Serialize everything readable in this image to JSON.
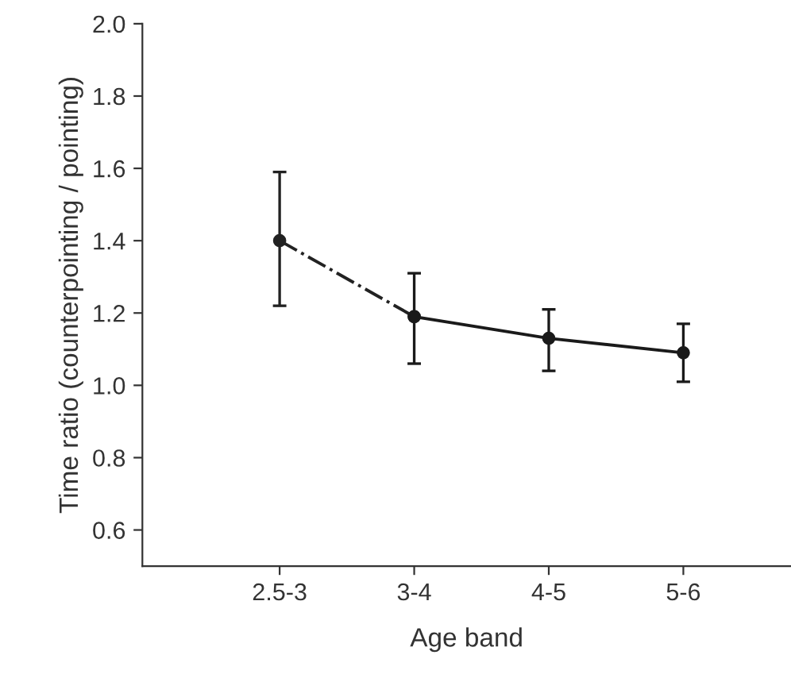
{
  "chart_data": {
    "type": "line",
    "xlabel": "Age band",
    "ylabel": "Time ratio (counterpointing / pointing)",
    "categories": [
      "2.5-3",
      "3-4",
      "4-5",
      "5-6"
    ],
    "series": [
      {
        "color": "#222222",
        "line_style": "dashdot",
        "values": [
          1.4,
          1.19,
          null,
          null
        ],
        "errors": [
          [
            1.22,
            1.59
          ],
          null,
          null,
          null
        ]
      },
      {
        "color": "#1a1a1a",
        "line_style": "solid",
        "values": [
          null,
          1.19,
          1.13,
          1.09
        ],
        "errors": [
          null,
          [
            1.06,
            1.31
          ],
          [
            1.04,
            1.21
          ],
          [
            1.01,
            1.17
          ]
        ]
      }
    ],
    "marker": "circle",
    "ylim": [
      0.5,
      2.0
    ],
    "yticks": [
      0.6,
      0.8,
      {
        "value": 1,
        "label": "1.0"
      },
      1.2,
      1.4,
      1.6,
      1.8,
      {
        "value": 2,
        "label": "2.0"
      }
    ],
    "grid": false,
    "legend": false
  }
}
